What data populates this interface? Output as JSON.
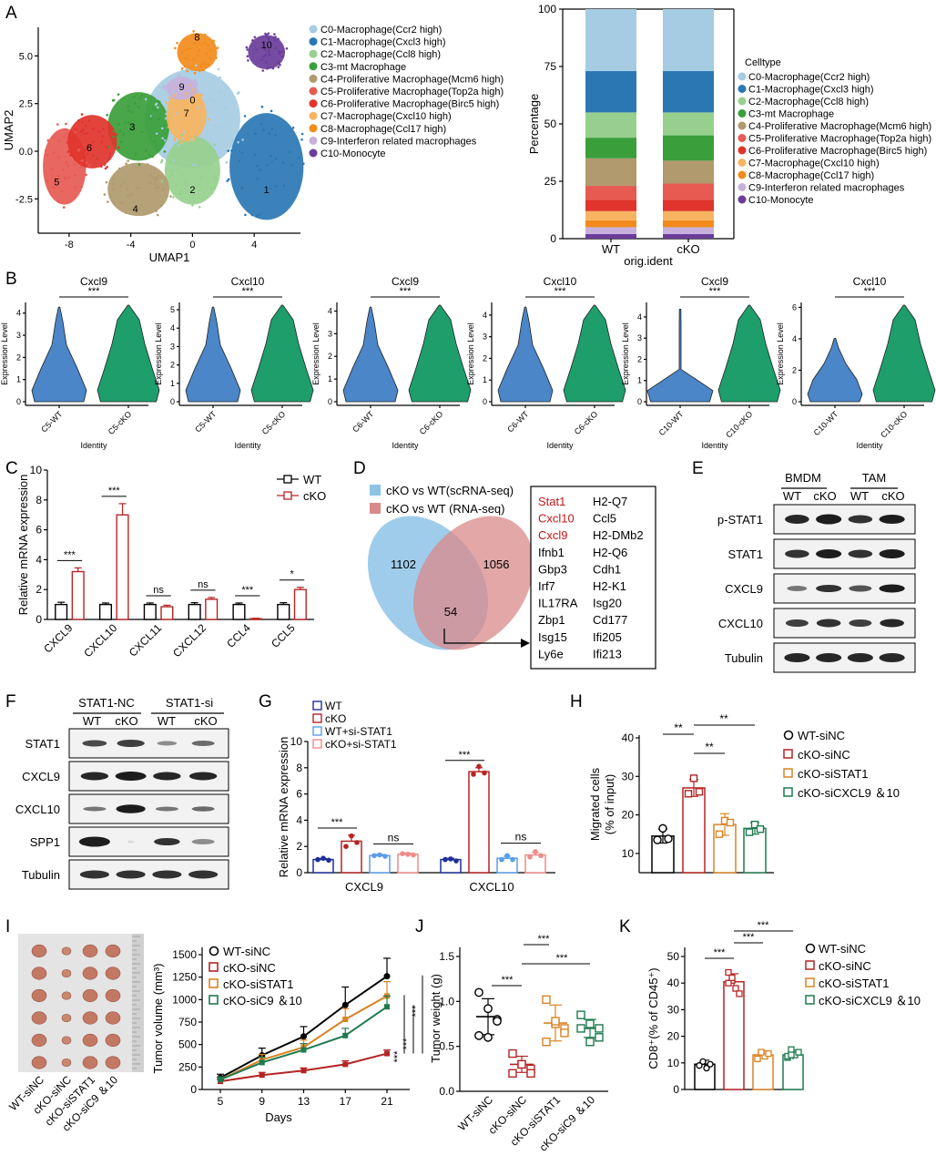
{
  "panels": {
    "A": "A",
    "B": "B",
    "C": "C",
    "D": "D",
    "E": "E",
    "F": "F",
    "G": "G",
    "H": "H",
    "I": "I",
    "J": "J",
    "K": "K"
  },
  "colors": {
    "clusters": [
      "#a6cce3",
      "#2a77b4",
      "#97d08e",
      "#3a9e3a",
      "#b09a6e",
      "#e65a52",
      "#e0342c",
      "#f7b460",
      "#f28b1c",
      "#c7b1db",
      "#6a3d9a"
    ],
    "wt_violin": "#4a86c8",
    "cko_violin": "#1d9e6b",
    "wt_bar": "#000000",
    "cko_bar": "#b52424",
    "g_wt": "#1f2f9a",
    "g_cko": "#b52424",
    "g_wtsi": "#5b9ee8",
    "g_ckosi": "#f08a8a",
    "grp_wtsinc": "#000000",
    "grp_ckosinc": "#b52424",
    "grp_ckosistat1": "#d98324",
    "grp_ckosic": "#1f7a4e",
    "venn_blue": "#8ec3e6",
    "venn_red": "#d98a8a"
  },
  "panelA": {
    "umap": {
      "xlabel": "UMAP1",
      "ylabel": "UMAP2",
      "xticks": [
        "-8",
        "-4",
        "0",
        "4"
      ],
      "yticks": [
        "5.0",
        "2.5",
        "0.0",
        "-2.5"
      ],
      "cluster_ids": [
        "0",
        "1",
        "2",
        "3",
        "4",
        "5",
        "6",
        "7",
        "8",
        "9",
        "10"
      ],
      "legend": [
        "C0-Macrophage(Ccr2 high)",
        "C1-Macrophage(Cxcl3 high)",
        "C2-Macrophage(Ccl8 high)",
        "C3-mt Macrophage",
        "C4-Proliferative Macrophage(Mcm6 high)",
        "C5-Proliferative Macrophage(Top2a high)",
        "C6-Proliferative Macrophage(Birc5 high)",
        "C7-Macrophage(Cxcl10 high)",
        "C8-Macrophage(Ccl17 high)",
        "C9-Interferon related macrophages",
        "C10-Monocyte"
      ]
    },
    "stacked": {
      "ylabel": "Percentage",
      "xlabel": "orig.ident",
      "legend_title": "Celltype",
      "yticks": [
        "0",
        "25",
        "50",
        "75",
        "100"
      ],
      "categories": [
        "WT",
        "cKO"
      ],
      "legend": [
        "C0-Macrophage(Ccr2 high)",
        "C1-Macrophage(Cxcl3 high)",
        "C2-Macrophage(Ccl8 high)",
        "C3-mt Macrophage",
        "C4-Proliferative Macrophage(Mcm6 high)",
        "C5-Proliferative Macrophage(Top2a high)",
        "C6-Proliferative Macrophage(Birc5 high)",
        "C7-Macrophage(Cxcl10 high)",
        "C8-Macrophage(Ccl17 high)",
        "C9-Interferon related macrophages",
        "C10-Monocyte"
      ]
    }
  },
  "panelB": {
    "ylabel": "Expression Level",
    "xlabel": "Identity",
    "sig": "***",
    "plots": [
      {
        "title": "Cxcl9",
        "cats": [
          "C5-WT",
          "C5-cKO"
        ],
        "yticks": [
          "0",
          "1",
          "2",
          "3",
          "4"
        ]
      },
      {
        "title": "Cxcl10",
        "cats": [
          "C5-WT",
          "C5-cKO"
        ],
        "yticks": [
          "0",
          "1",
          "2",
          "3",
          "4",
          "5"
        ]
      },
      {
        "title": "Cxcl9",
        "cats": [
          "C6-WT",
          "C6-cKO"
        ],
        "yticks": [
          "0",
          "1",
          "2",
          "3",
          "4"
        ]
      },
      {
        "title": "Cxcl10",
        "cats": [
          "C6-WT",
          "C6-cKO"
        ],
        "yticks": [
          "0",
          "1",
          "2",
          "3",
          "4"
        ]
      },
      {
        "title": "Cxcl9",
        "cats": [
          "C10-WT",
          "C10-cKO"
        ],
        "yticks": [
          "0",
          "1",
          "2",
          "3",
          "4"
        ]
      },
      {
        "title": "Cxcl10",
        "cats": [
          "C10-WT",
          "C10-cKO"
        ],
        "yticks": [
          "0",
          "2",
          "4",
          "6"
        ]
      }
    ]
  },
  "panelC": {
    "ylabel": "Relative mRNA expression",
    "yticks": [
      "0",
      "2",
      "4",
      "6",
      "8",
      "10"
    ],
    "legend": [
      "WT",
      "cKO"
    ],
    "categories": [
      "CXCL9",
      "CXCL10",
      "CXCL11",
      "CXCL12",
      "CCL4",
      "CCL5"
    ],
    "sig": [
      "***",
      "***",
      "ns",
      "ns",
      "***",
      "*"
    ]
  },
  "panelD": {
    "legend": [
      "cKO vs WT(scRNA-seq)",
      "cKO vs WT (RNA-seq)"
    ],
    "counts": [
      "1102",
      "54",
      "1056"
    ],
    "genes_red": [
      "Stat1",
      "Cxcl10",
      "Cxcl9"
    ],
    "genes_col1": [
      "Ifnb1",
      "Gbp3",
      "Irf7",
      "IL17RA",
      "Zbp1",
      "Isg15",
      "Ly6e"
    ],
    "genes_col2": [
      "H2-Q7",
      "Ccl5",
      "H2-DMb2",
      "H2-Q6",
      "Cdh1",
      "H2-K1",
      "Isg20",
      "Cd177",
      "Ifi205",
      "Ifi213"
    ]
  },
  "panelE": {
    "groups": [
      "BMDM",
      "TAM"
    ],
    "lanes": [
      "WT",
      "cKO",
      "WT",
      "cKO"
    ],
    "rows": [
      "p-STAT1",
      "STAT1",
      "CXCL9",
      "CXCL10",
      "Tubulin"
    ]
  },
  "panelF": {
    "groups": [
      "STAT1-NC",
      "STAT1-si"
    ],
    "lanes": [
      "WT",
      "cKO",
      "WT",
      "cKO"
    ],
    "rows": [
      "STAT1",
      "CXCL9",
      "CXCL10",
      "SPP1",
      "Tubulin"
    ]
  },
  "panelG": {
    "ylabel": "Relative mRNA expression",
    "yticks": [
      "0",
      "2",
      "4",
      "6",
      "8",
      "10"
    ],
    "legend": [
      "WT",
      "cKO",
      "WT+si-STAT1",
      "cKO+si-STAT1"
    ],
    "categories": [
      "CXCL9",
      "CXCL10"
    ],
    "sig": [
      "***",
      "ns",
      "***",
      "ns"
    ]
  },
  "panelH": {
    "ylabel": "Migrated cells",
    "ylabel2": "(% of input)",
    "yticks": [
      "10",
      "20",
      "30",
      "40"
    ],
    "legend": [
      "WT-siNC",
      "cKO-siNC",
      "cKO-siSTAT1",
      "cKO-siCXCL9 ＆10"
    ],
    "sig": [
      "**",
      "**",
      "**"
    ]
  },
  "panelI": {
    "photo_labels": [
      "WT-siNC",
      "cKO-siNC",
      "cKO-siSTAT1",
      "cKO-siC9 ＆10"
    ],
    "ylabel": "Tumor volume (mm³)",
    "xlabel": "Days",
    "xticks": [
      "5",
      "9",
      "13",
      "17",
      "21"
    ],
    "yticks": [
      "0",
      "250",
      "500",
      "750",
      "1000",
      "1250",
      "1500"
    ],
    "legend": [
      "WT-siNC",
      "cKO-siNC",
      "cKO-siSTAT1",
      "cKO-siC9 ＆10"
    ],
    "sig": "***"
  },
  "panelJ": {
    "ylabel": "Tumor weight (g)",
    "yticks": [
      "0.0",
      "0.5",
      "1.0",
      "1.5"
    ],
    "categories": [
      "WT-siNC",
      "cKO-siNC",
      "cKO-siSTAT1",
      "cKO-siC9 ＆10"
    ],
    "sig": [
      "***",
      "***",
      "***"
    ]
  },
  "panelK": {
    "ylabel": "CD8⁺(% of CD45⁺)",
    "yticks": [
      "0",
      "10",
      "20",
      "30",
      "40",
      "50"
    ],
    "legend": [
      "WT-siNC",
      "cKO-siNC",
      "cKO-siSTAT1",
      "cKO-siCXCL9 ＆10"
    ],
    "sig": [
      "***",
      "***",
      "***"
    ]
  },
  "chart_data": [
    {
      "type": "bar",
      "panel": "A-right",
      "title": "",
      "xlabel": "orig.ident",
      "ylabel": "Percentage",
      "categories": [
        "WT",
        "cKO"
      ],
      "ylim": [
        0,
        100
      ],
      "series": [
        {
          "name": "C0-Macrophage(Ccr2 high)",
          "values": [
            27,
            27
          ]
        },
        {
          "name": "C1-Macrophage(Cxcl3 high)",
          "values": [
            18,
            18
          ]
        },
        {
          "name": "C2-Macrophage(Ccl8 high)",
          "values": [
            11,
            10
          ]
        },
        {
          "name": "C3-mt Macrophage",
          "values": [
            9,
            11
          ]
        },
        {
          "name": "C4-Proliferative Macrophage(Mcm6 high)",
          "values": [
            12,
            10
          ]
        },
        {
          "name": "C5-Proliferative Macrophage(Top2a high)",
          "values": [
            6,
            7
          ]
        },
        {
          "name": "C6-Proliferative Macrophage(Birc5 high)",
          "values": [
            5,
            5
          ]
        },
        {
          "name": "C7-Macrophage(Cxcl10 high)",
          "values": [
            4,
            4
          ]
        },
        {
          "name": "C8-Macrophage(Ccl17 high)",
          "values": [
            3,
            3
          ]
        },
        {
          "name": "C9-Interferon related macrophages",
          "values": [
            3,
            3
          ]
        },
        {
          "name": "C10-Monocyte",
          "values": [
            2,
            2
          ]
        }
      ]
    },
    {
      "type": "bar",
      "panel": "C",
      "ylabel": "Relative mRNA expression",
      "categories": [
        "CXCL9",
        "CXCL10",
        "CXCL11",
        "CXCL12",
        "CCL4",
        "CCL5"
      ],
      "ylim": [
        0,
        10
      ],
      "series": [
        {
          "name": "WT",
          "values": [
            1,
            1,
            1,
            1,
            1,
            1
          ],
          "err": [
            0.15,
            0.1,
            0.1,
            0.12,
            0.1,
            0.12
          ]
        },
        {
          "name": "cKO",
          "values": [
            3.2,
            7.0,
            0.85,
            1.35,
            0.05,
            2.0
          ],
          "err": [
            0.25,
            0.75,
            0.1,
            0.12,
            0.03,
            0.15
          ]
        }
      ]
    },
    {
      "type": "bar",
      "panel": "G",
      "ylabel": "Relative mRNA expression",
      "categories": [
        "CXCL9",
        "CXCL10"
      ],
      "ylim": [
        0,
        10
      ],
      "series": [
        {
          "name": "WT",
          "values": [
            1.0,
            1.0
          ],
          "err": [
            0.08,
            0.1
          ]
        },
        {
          "name": "cKO",
          "values": [
            2.4,
            7.7
          ],
          "err": [
            0.45,
            0.3
          ]
        },
        {
          "name": "WT+si-STAT1",
          "values": [
            1.3,
            1.1
          ],
          "err": [
            0.1,
            0.15
          ]
        },
        {
          "name": "cKO+si-STAT1",
          "values": [
            1.4,
            1.35
          ],
          "err": [
            0.1,
            0.2
          ]
        }
      ],
      "points": [
        [
          [
            1.0,
            1.1,
            0.95
          ],
          [
            1.0,
            1.05,
            0.9
          ]
        ],
        [
          [
            2.0,
            2.8,
            2.3
          ],
          [
            7.5,
            8.1,
            7.6
          ]
        ],
        [
          [
            1.3,
            1.35,
            1.25
          ],
          [
            1.0,
            1.3,
            1.0
          ]
        ],
        [
          [
            1.45,
            1.4,
            1.35
          ],
          [
            1.2,
            1.6,
            1.3
          ]
        ]
      ]
    },
    {
      "type": "bar",
      "panel": "H",
      "ylabel": "Migrated cells (% of input)",
      "categories": [
        "WT-siNC",
        "cKO-siNC",
        "cKO-siSTAT1",
        "cKO-siCXCL9 ＆10"
      ],
      "ylim": [
        0,
        40
      ],
      "ybase": 0,
      "values": [
        14.5,
        27,
        17.5,
        16.5
      ],
      "err": [
        1.8,
        2.2,
        2.8,
        1.5
      ],
      "points": [
        [
          13.5,
          16.5,
          13.8
        ],
        [
          25.5,
          29.5,
          26
        ],
        [
          15,
          18.5,
          18
        ],
        [
          15.5,
          17.5,
          16.3
        ]
      ]
    },
    {
      "type": "line",
      "panel": "I",
      "xlabel": "Days",
      "ylabel": "Tumor volume (mm³)",
      "x": [
        5,
        9,
        13,
        17,
        21
      ],
      "ylim": [
        0,
        1500
      ],
      "series": [
        {
          "name": "WT-siNC",
          "values": [
            130,
            380,
            590,
            940,
            1260
          ],
          "err": [
            40,
            80,
            110,
            200,
            200
          ]
        },
        {
          "name": "cKO-siNC",
          "values": [
            90,
            160,
            210,
            280,
            400
          ],
          "err": [
            20,
            30,
            30,
            40,
            40
          ]
        },
        {
          "name": "cKO-siSTAT1",
          "values": [
            110,
            330,
            470,
            780,
            1040
          ],
          "err": [
            30,
            60,
            80,
            120,
            160
          ]
        },
        {
          "name": "cKO-siC9 ＆10",
          "values": [
            110,
            300,
            440,
            600,
            920
          ],
          "err": [
            30,
            60,
            70,
            80,
            120
          ]
        }
      ]
    },
    {
      "type": "scatter",
      "panel": "J",
      "ylabel": "Tumor weight (g)",
      "categories": [
        "WT-siNC",
        "cKO-siNC",
        "cKO-siSTAT1",
        "cKO-siC9 ＆10"
      ],
      "ylim": [
        0,
        1.5
      ],
      "means": [
        0.83,
        0.3,
        0.76,
        0.7
      ],
      "err": [
        0.2,
        0.09,
        0.2,
        0.1
      ],
      "points": [
        [
          1.1,
          0.92,
          0.8,
          0.62,
          0.6,
          0.78
        ],
        [
          0.42,
          0.3,
          0.25,
          0.2,
          0.3,
          0.2
        ],
        [
          1.02,
          0.75,
          0.7,
          0.55,
          0.78,
          0.65
        ],
        [
          0.85,
          0.75,
          0.6,
          0.7,
          0.55,
          0.7
        ]
      ]
    },
    {
      "type": "bar",
      "panel": "K",
      "ylabel": "CD8⁺(% of CD45⁺)",
      "categories": [
        "WT-siNC",
        "cKO-siNC",
        "cKO-siSTAT1",
        "cKO-siCXCL9 ＆10"
      ],
      "ylim": [
        0,
        50
      ],
      "values": [
        9.5,
        40.5,
        13,
        13
      ],
      "err": [
        1.5,
        3,
        1.5,
        1.7
      ],
      "points": [
        [
          9,
          10.5,
          8,
          9.5,
          9
        ],
        [
          44,
          41,
          38,
          36,
          40,
          42
        ],
        [
          12,
          14,
          12.5,
          13.5,
          11.5,
          14
        ],
        [
          12,
          15,
          13,
          14,
          12.5,
          13
        ]
      ]
    }
  ]
}
